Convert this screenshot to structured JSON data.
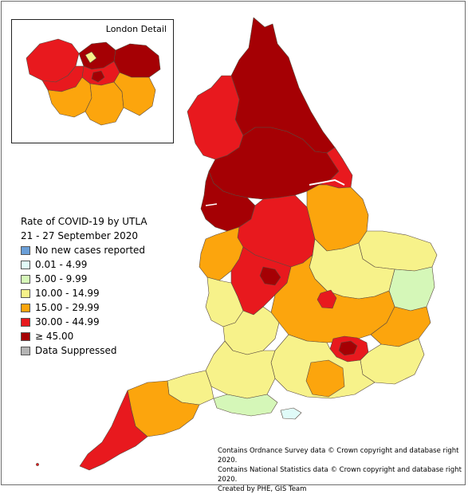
{
  "inset": {
    "title": "London Detail"
  },
  "legend": {
    "title_line1": "Rate of COVID-19 by UTLA",
    "title_line2": "21 - 27 September 2020",
    "items": [
      {
        "label": "No new cases reported",
        "color": "#6a9fd8"
      },
      {
        "label": "0.01 - 4.99",
        "color": "#e0fbf8"
      },
      {
        "label": "5.00 - 9.99",
        "color": "#d5f7b8"
      },
      {
        "label": "10.00 - 14.99",
        "color": "#f7f28a"
      },
      {
        "label": "15.00 - 29.99",
        "color": "#fca50d"
      },
      {
        "label": "30.00 - 44.99",
        "color": "#e8191e"
      },
      {
        "label": "≥ 45.00",
        "color": "#a50004"
      },
      {
        "label": "Data Suppressed",
        "color": "#b4b4b4"
      }
    ]
  },
  "credits": {
    "line1": "Contains Ordnance Survey data © Crown copyright and database right 2020.",
    "line2": "Contains National Statistics data © Crown copyright and database right 2020.",
    "line3": "Created by PHE, GIS Team"
  }
}
